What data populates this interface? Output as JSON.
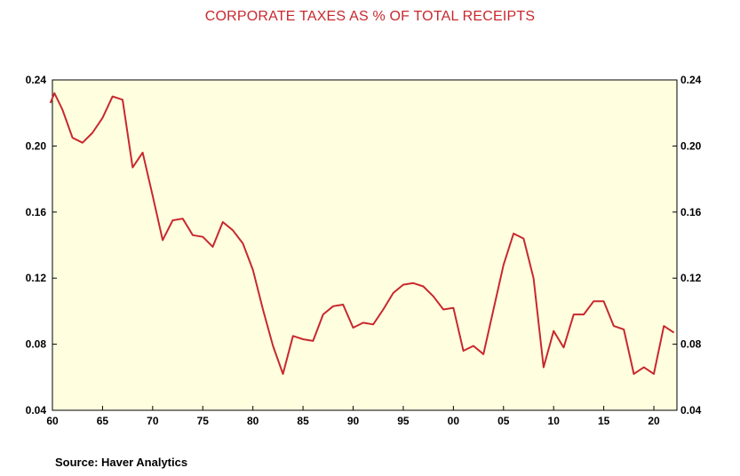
{
  "source": "Source:  Haver Analytics",
  "colors": {
    "series": "#c8282d",
    "plot_background": "#ffffe0",
    "title": "#c8282d"
  },
  "chart_data": {
    "type": "line",
    "title": "CORPORATE TAXES AS % OF TOTAL RECEIPTS",
    "xlabel": "",
    "ylabel": "",
    "xlim": [
      1960,
      2022.3
    ],
    "ylim": [
      0.04,
      0.24
    ],
    "x_ticks": [
      1960,
      1965,
      1970,
      1975,
      1980,
      1985,
      1990,
      1995,
      2000,
      2005,
      2010,
      2015,
      2020
    ],
    "x_tick_labels": [
      "60",
      "65",
      "70",
      "75",
      "80",
      "85",
      "90",
      "95",
      "00",
      "05",
      "10",
      "15",
      "20"
    ],
    "y_ticks": [
      0.04,
      0.08,
      0.12,
      0.16,
      0.2,
      0.24
    ],
    "y_tick_labels": [
      "0.04",
      "0.08",
      "0.12",
      "0.16",
      "0.20",
      "0.24"
    ],
    "y_axis_right_mirror": true,
    "grid": false,
    "legend": "none",
    "series": [
      {
        "x": [
          1959.8,
          1960.2,
          1961,
          1962,
          1963,
          1964,
          1965,
          1966,
          1967,
          1968,
          1969,
          1970,
          1971,
          1972,
          1973,
          1974,
          1975,
          1976,
          1977,
          1978,
          1979,
          1980,
          1981,
          1982,
          1983,
          1984,
          1985,
          1986,
          1987,
          1988,
          1989,
          1990,
          1991,
          1992,
          1993,
          1994,
          1995,
          1996,
          1997,
          1998,
          1999,
          2000,
          2001,
          2002,
          2003,
          2004,
          2005,
          2006,
          2007,
          2008,
          2009,
          2010,
          2011,
          2012,
          2013,
          2014,
          2015,
          2016,
          2017,
          2018,
          2019,
          2020,
          2021,
          2022
        ],
        "values": [
          0.226,
          0.232,
          0.222,
          0.205,
          0.202,
          0.208,
          0.217,
          0.23,
          0.228,
          0.187,
          0.196,
          0.17,
          0.143,
          0.155,
          0.156,
          0.146,
          0.145,
          0.139,
          0.154,
          0.149,
          0.141,
          0.125,
          0.101,
          0.079,
          0.062,
          0.085,
          0.083,
          0.082,
          0.098,
          0.103,
          0.104,
          0.09,
          0.093,
          0.092,
          0.101,
          0.111,
          0.116,
          0.117,
          0.115,
          0.109,
          0.101,
          0.102,
          0.076,
          0.079,
          0.074,
          0.101,
          0.128,
          0.147,
          0.144,
          0.12,
          0.066,
          0.088,
          0.078,
          0.098,
          0.098,
          0.106,
          0.106,
          0.091,
          0.089,
          0.062,
          0.066,
          0.062,
          0.091,
          0.087
        ]
      }
    ]
  }
}
